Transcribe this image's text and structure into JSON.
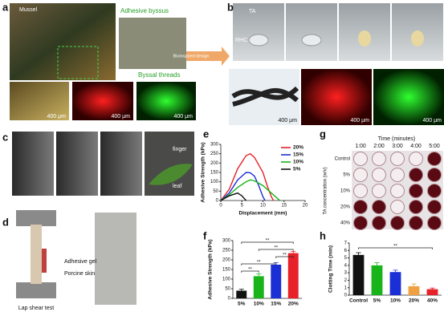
{
  "panels": {
    "a": {
      "label": "a",
      "mussel": "Mussel",
      "byssus": "Adhesive byssus",
      "threads": "Byssal threads",
      "scale": [
        "400 μm",
        "400 μm",
        "400 μm"
      ],
      "arrow": "Bioinspired design"
    },
    "b": {
      "label": "b",
      "ta": "TA",
      "rhc": "RHC",
      "scale": [
        "400 μm",
        "400 μm",
        "400 μm"
      ]
    },
    "c": {
      "label": "c",
      "finger": "finger",
      "leaf": "leaf"
    },
    "d": {
      "label": "d",
      "gel": "Adhesive gel",
      "skin": "Porcine skin",
      "caption": "Lap shear test"
    },
    "e": {
      "label": "e"
    },
    "f": {
      "label": "f"
    },
    "g": {
      "label": "g",
      "time_title": "Time (minutes)",
      "times": [
        "1:00",
        "2:00",
        "3:00",
        "4:00",
        "5:00"
      ],
      "row_title": "TA concentration (w/v)",
      "rows": [
        "Control",
        "5%",
        "10%",
        "20%",
        "40%"
      ]
    },
    "h": {
      "label": "h"
    }
  },
  "chart_data": [
    {
      "type": "line",
      "xlabel": "Displacement (mm)",
      "ylabel": "Adhesive Strength (kPa)",
      "xlim": [
        0,
        20
      ],
      "xticks": [
        0,
        5,
        10,
        15,
        20
      ],
      "ylim": [
        0,
        300
      ],
      "yticks": [
        0,
        50,
        100,
        150,
        200,
        250,
        300
      ],
      "series": [
        {
          "name": "20%",
          "color": "#e8202a",
          "x": [
            0,
            2,
            4,
            6,
            7,
            8,
            10,
            11,
            12,
            12.5
          ],
          "values": [
            0,
            60,
            170,
            240,
            250,
            230,
            150,
            80,
            20,
            0
          ]
        },
        {
          "name": "15%",
          "color": "#1b2fd6",
          "x": [
            0,
            2,
            4,
            6,
            7,
            8,
            9,
            10,
            10.5
          ],
          "values": [
            0,
            40,
            110,
            150,
            148,
            130,
            80,
            20,
            0
          ]
        },
        {
          "name": "10%",
          "color": "#19b419",
          "x": [
            0,
            2,
            4,
            6,
            7,
            8,
            10,
            12,
            13,
            14
          ],
          "values": [
            0,
            30,
            70,
            100,
            110,
            105,
            80,
            40,
            20,
            0
          ]
        },
        {
          "name": "5%",
          "color": "#111111",
          "x": [
            0,
            2,
            4,
            5,
            6
          ],
          "values": [
            0,
            25,
            40,
            25,
            0
          ]
        }
      ]
    },
    {
      "type": "bar",
      "ylabel": "Adhesive Strength (kPa)",
      "categories": [
        "5%",
        "10%",
        "15%",
        "20%"
      ],
      "values": [
        40,
        115,
        175,
        235
      ],
      "errors": [
        8,
        12,
        10,
        8
      ],
      "colors": [
        "#111111",
        "#19b419",
        "#1b2fd6",
        "#e8202a"
      ],
      "ylim": [
        0,
        300
      ],
      "yticks": [
        0,
        50,
        100,
        150,
        200,
        250,
        300
      ],
      "significance": [
        "**",
        "**",
        "**",
        "**",
        "**"
      ]
    },
    {
      "type": "bar",
      "ylabel": "Clotting Time (min)",
      "categories": [
        "Control",
        "5%",
        "10%",
        "20%",
        "40%"
      ],
      "values": [
        5.4,
        4.0,
        3.1,
        1.2,
        0.8
      ],
      "errors": [
        0.3,
        0.35,
        0.25,
        0.3,
        0.15
      ],
      "colors": [
        "#111111",
        "#19b419",
        "#1b2fd6",
        "#f0a040",
        "#e8202a"
      ],
      "ylim": [
        0,
        7
      ],
      "yticks": [
        0,
        1,
        2,
        3,
        4,
        5,
        6,
        7
      ],
      "significance": [
        "**"
      ]
    }
  ]
}
